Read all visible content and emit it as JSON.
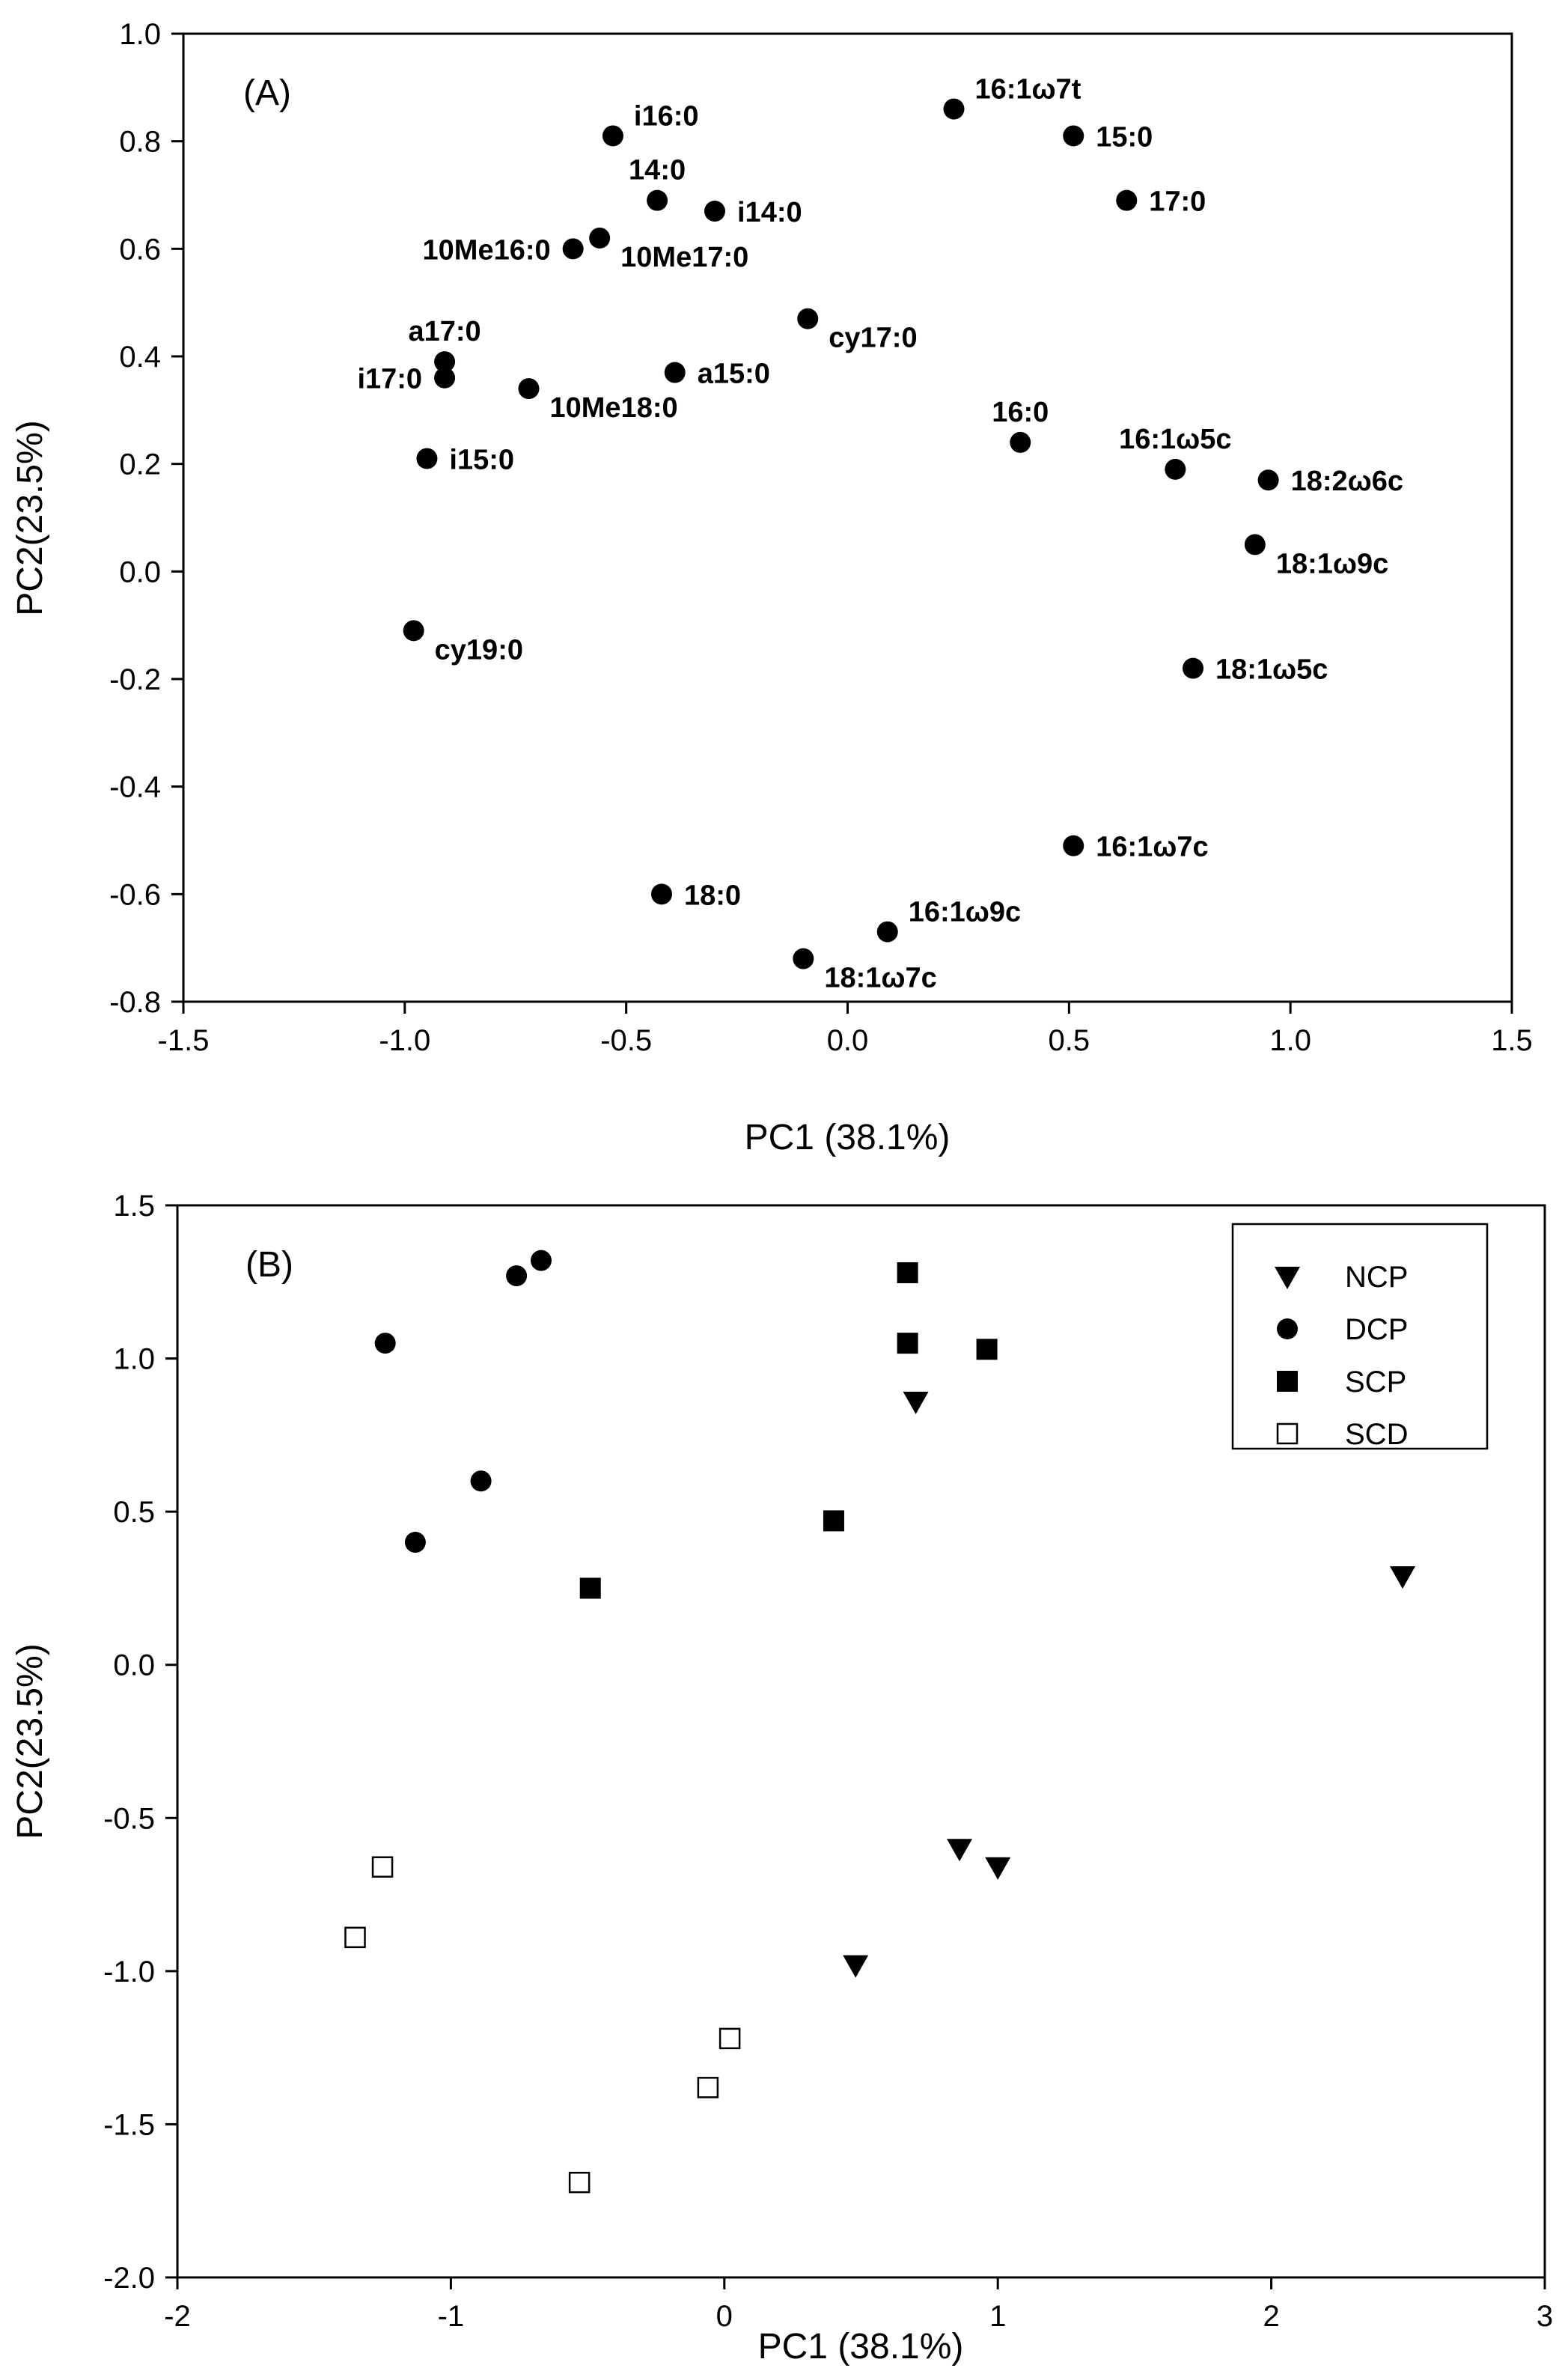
{
  "chart_data": [
    {
      "type": "scatter",
      "panel_label": "(A)",
      "xlabel": "PC1 (38.1%)",
      "ylabel": "PC2(23.5%)",
      "xlim": [
        -1.5,
        1.5
      ],
      "ylim": [
        -0.8,
        1.0
      ],
      "xticks": [
        -1.5,
        -1.0,
        -0.5,
        0.0,
        0.5,
        1.0,
        1.5
      ],
      "xtick_labels": [
        "-1.5",
        "-1.0",
        "-0.5",
        "0.0",
        "0.5",
        "1.0",
        "1.5"
      ],
      "yticks": [
        -0.8,
        -0.6,
        -0.4,
        -0.2,
        0.0,
        0.2,
        0.4,
        0.6,
        0.8,
        1.0
      ],
      "ytick_labels": [
        "-0.8",
        "-0.6",
        "-0.4",
        "-0.2",
        "0.0",
        "0.2",
        "0.4",
        "0.6",
        "0.8",
        "1.0"
      ],
      "grid": false,
      "marker": "filled-circle",
      "points": [
        {
          "label": "16:1ω7t",
          "x": 0.24,
          "y": 0.86,
          "pos": "ne"
        },
        {
          "label": "15:0",
          "x": 0.51,
          "y": 0.81,
          "pos": "e"
        },
        {
          "label": "17:0",
          "x": 0.63,
          "y": 0.69,
          "pos": "e"
        },
        {
          "label": "i16:0",
          "x": -0.53,
          "y": 0.81,
          "pos": "ne"
        },
        {
          "label": "14:0",
          "x": -0.43,
          "y": 0.69,
          "pos": "n"
        },
        {
          "label": "i14:0",
          "x": -0.3,
          "y": 0.67,
          "pos": "e"
        },
        {
          "label": "10Me16:0",
          "x": -0.62,
          "y": 0.6,
          "pos": "w"
        },
        {
          "label": "10Me17:0",
          "x": -0.56,
          "y": 0.62,
          "pos": "se"
        },
        {
          "label": "cy17:0",
          "x": -0.09,
          "y": 0.47,
          "pos": "se"
        },
        {
          "label": "a17:0",
          "x": -0.91,
          "y": 0.39,
          "pos": "n"
        },
        {
          "label": "i17:0",
          "x": -0.91,
          "y": 0.36,
          "pos": "w"
        },
        {
          "label": "10Me18:0",
          "x": -0.72,
          "y": 0.34,
          "pos": "se"
        },
        {
          "label": "a15:0",
          "x": -0.39,
          "y": 0.37,
          "pos": "e"
        },
        {
          "label": "16:0",
          "x": 0.39,
          "y": 0.24,
          "pos": "n"
        },
        {
          "label": "16:1ω5c",
          "x": 0.74,
          "y": 0.19,
          "pos": "n"
        },
        {
          "label": "18:2ω6c",
          "x": 0.95,
          "y": 0.17,
          "pos": "e"
        },
        {
          "label": "i15:0",
          "x": -0.95,
          "y": 0.21,
          "pos": "e"
        },
        {
          "label": "18:1ω9c",
          "x": 0.92,
          "y": 0.05,
          "pos": "se"
        },
        {
          "label": "cy19:0",
          "x": -0.98,
          "y": -0.11,
          "pos": "se"
        },
        {
          "label": "18:1ω5c",
          "x": 0.78,
          "y": -0.18,
          "pos": "e"
        },
        {
          "label": "16:1ω7c",
          "x": 0.51,
          "y": -0.51,
          "pos": "e"
        },
        {
          "label": "18:0",
          "x": -0.42,
          "y": -0.6,
          "pos": "e"
        },
        {
          "label": "16:1ω9c",
          "x": 0.09,
          "y": -0.67,
          "pos": "ne"
        },
        {
          "label": "18:1ω7c",
          "x": -0.1,
          "y": -0.72,
          "pos": "se"
        }
      ]
    },
    {
      "type": "scatter",
      "panel_label": "(B)",
      "xlabel": "PC1 (38.1%)",
      "ylabel": "PC2(23.5%)",
      "xlim": [
        -2,
        3
      ],
      "ylim": [
        -2.0,
        1.5
      ],
      "xticks": [
        -2,
        -1,
        0,
        1,
        2,
        3
      ],
      "xtick_labels": [
        "-2",
        "-1",
        "0",
        "1",
        "2",
        "3"
      ],
      "yticks": [
        -2.0,
        -1.5,
        -1.0,
        -0.5,
        0.0,
        0.5,
        1.0,
        1.5
      ],
      "ytick_labels": [
        "-2.0",
        "-1.5",
        "-1.0",
        "-0.5",
        "0.0",
        "0.5",
        "1.0",
        "1.5"
      ],
      "grid": false,
      "legend_position": "top-right",
      "series": [
        {
          "name": "NCP",
          "marker": "filled-down-triangle",
          "x": [
            0.7,
            2.48,
            0.86,
            1.0,
            0.48
          ],
          "y": [
            0.86,
            0.29,
            -0.6,
            -0.66,
            -0.98
          ]
        },
        {
          "name": "DCP",
          "marker": "filled-circle",
          "x": [
            -0.67,
            -0.76,
            -1.24,
            -0.89,
            -1.13
          ],
          "y": [
            1.32,
            1.27,
            1.05,
            0.6,
            0.4
          ]
        },
        {
          "name": "SCP",
          "marker": "filled-square",
          "x": [
            0.67,
            0.67,
            0.96,
            0.4,
            -0.49
          ],
          "y": [
            1.28,
            1.05,
            1.03,
            0.47,
            0.25
          ]
        },
        {
          "name": "SCD",
          "marker": "open-square",
          "x": [
            -1.25,
            -1.35,
            0.02,
            -0.06,
            -0.53
          ],
          "y": [
            -0.66,
            -0.89,
            -1.22,
            -1.38,
            -1.69
          ]
        }
      ]
    }
  ]
}
